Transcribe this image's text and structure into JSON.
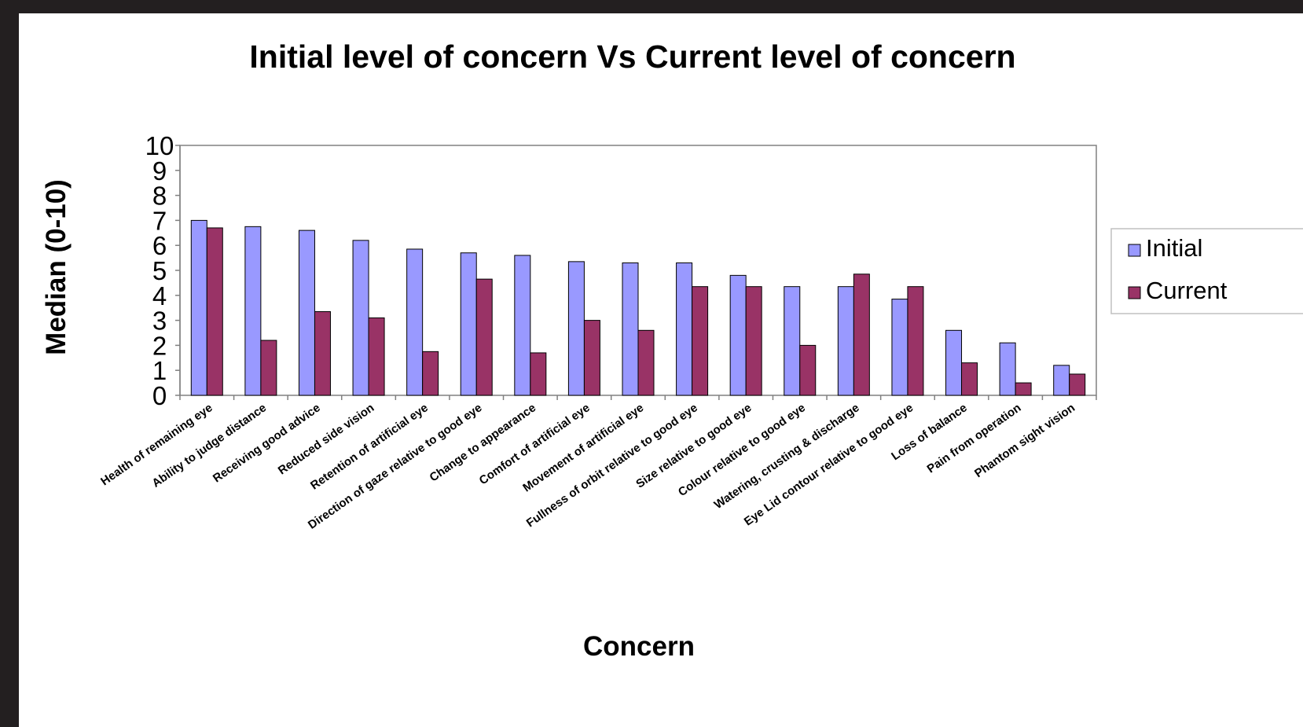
{
  "chart_data": {
    "type": "bar",
    "title": "Initial level of concern Vs Current level of concern",
    "xlabel": "Concern",
    "ylabel": "Median (0-10)",
    "ylim": [
      0,
      10
    ],
    "yticks": [
      "0",
      "1",
      "2",
      "3",
      "4",
      "5",
      "6",
      "7",
      "8",
      "9",
      "10"
    ],
    "grid": false,
    "legend_position": "right",
    "categories": [
      "Health of remaining eye",
      "Ability to judge distance",
      "Receiving good advice",
      "Reduced side vision",
      "Retention of artificial eye",
      "Direction of gaze relative to good eye",
      "Change to appearance",
      "Comfort of artificial eye",
      "Movement of artificial eye",
      "Fullness of orbit relative to good eye",
      "Size relative to good eye",
      "Colour relative to good eye",
      "Watering, crusting & discharge",
      "Eye Lid contour relative to good eye",
      "Loss of balance",
      "Pain from operation",
      "Phantom sight vision"
    ],
    "series": [
      {
        "name": "Initial",
        "color": "#9999ff",
        "values": [
          7.0,
          6.75,
          6.6,
          6.2,
          5.85,
          5.7,
          5.6,
          5.35,
          5.3,
          5.3,
          4.8,
          4.35,
          4.35,
          3.85,
          2.6,
          2.1,
          1.2
        ]
      },
      {
        "name": "Current",
        "color": "#993366",
        "values": [
          6.7,
          2.2,
          3.35,
          3.1,
          1.75,
          4.65,
          1.7,
          3.0,
          2.6,
          4.35,
          4.35,
          2.0,
          4.85,
          4.35,
          1.3,
          0.5,
          0.85
        ]
      }
    ]
  }
}
